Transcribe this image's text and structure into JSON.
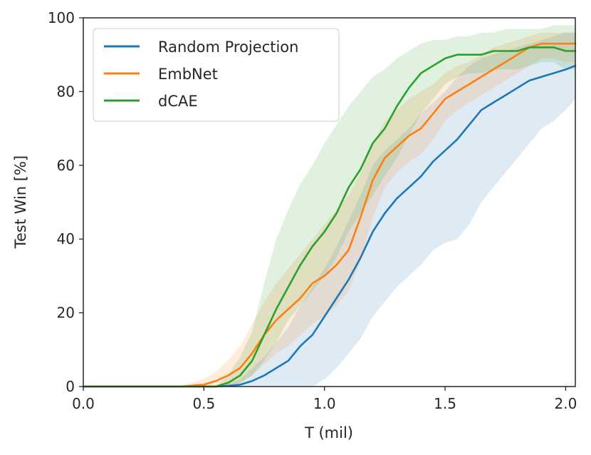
{
  "chart_data": {
    "type": "line",
    "xlabel": "T (mil)",
    "ylabel": "Test Win [%]",
    "xlim": [
      0.0,
      2.04
    ],
    "ylim": [
      0,
      100
    ],
    "xticks": [
      "0.0",
      "0.5",
      "1.0",
      "1.5",
      "2.0"
    ],
    "xtick_values": [
      0.0,
      0.5,
      1.0,
      1.5,
      2.0
    ],
    "yticks": [
      "0",
      "20",
      "40",
      "60",
      "80",
      "100"
    ],
    "ytick_values": [
      0,
      20,
      40,
      60,
      80,
      100
    ],
    "legend_position": "top-left",
    "series": [
      {
        "name": "Random Projection",
        "color": "#1f77b4",
        "x": [
          0.0,
          0.55,
          0.6,
          0.65,
          0.7,
          0.75,
          0.8,
          0.85,
          0.9,
          0.95,
          1.0,
          1.05,
          1.1,
          1.15,
          1.2,
          1.25,
          1.3,
          1.35,
          1.4,
          1.45,
          1.5,
          1.55,
          1.6,
          1.65,
          1.7,
          1.75,
          1.8,
          1.85,
          1.9,
          1.95,
          2.0,
          2.04
        ],
        "values": [
          0,
          0,
          0.2,
          0.5,
          1.5,
          3,
          5,
          7,
          11,
          14,
          19,
          24,
          29,
          35,
          42,
          47,
          51,
          54,
          57,
          61,
          64,
          67,
          71,
          75,
          77,
          79,
          81,
          83,
          84,
          85,
          86,
          87
        ],
        "lower": [
          0,
          0,
          0,
          0,
          0,
          0,
          0,
          0,
          0,
          0,
          2,
          5,
          9,
          13,
          19,
          23,
          27,
          30,
          33,
          37,
          39,
          40,
          44,
          50,
          54,
          58,
          62,
          66,
          70,
          72,
          75,
          78
        ],
        "upper": [
          0,
          0,
          1,
          2,
          5,
          8,
          12,
          16,
          22,
          27,
          32,
          38,
          45,
          52,
          60,
          64,
          67,
          70,
          74,
          77,
          80,
          84,
          87,
          89,
          90,
          91,
          92,
          93,
          94,
          95,
          96,
          96
        ]
      },
      {
        "name": "EmbNet",
        "color": "#ff7f0e",
        "x": [
          0.0,
          0.4,
          0.5,
          0.55,
          0.6,
          0.65,
          0.7,
          0.75,
          0.8,
          0.85,
          0.9,
          0.95,
          1.0,
          1.05,
          1.1,
          1.15,
          1.2,
          1.25,
          1.3,
          1.35,
          1.4,
          1.45,
          1.5,
          1.55,
          1.6,
          1.65,
          1.7,
          1.75,
          1.8,
          1.85,
          1.9,
          1.95,
          2.0,
          2.04
        ],
        "values": [
          0,
          0,
          0.5,
          1.5,
          3,
          5,
          9,
          14,
          18,
          21,
          24,
          28,
          30,
          33,
          37,
          46,
          56,
          62,
          65,
          68,
          70,
          74,
          78,
          80,
          82,
          84,
          86,
          88,
          90,
          92,
          93,
          93,
          93,
          93
        ],
        "lower": [
          0,
          0,
          0,
          0,
          0,
          1,
          3,
          6,
          9,
          11,
          14,
          17,
          19,
          22,
          26,
          34,
          46,
          54,
          58,
          61,
          63,
          67,
          72,
          75,
          77,
          79,
          81,
          83,
          85,
          87,
          89,
          89,
          88,
          88
        ],
        "upper": [
          0,
          0,
          2,
          4,
          7,
          11,
          17,
          23,
          28,
          32,
          36,
          40,
          44,
          48,
          52,
          58,
          66,
          72,
          75,
          78,
          80,
          82,
          85,
          87,
          88,
          90,
          92,
          93,
          94,
          95,
          96,
          96,
          96,
          96
        ]
      },
      {
        "name": "dCAE",
        "color": "#2ca02c",
        "x": [
          0.0,
          0.55,
          0.6,
          0.65,
          0.7,
          0.75,
          0.8,
          0.85,
          0.9,
          0.95,
          1.0,
          1.05,
          1.1,
          1.15,
          1.2,
          1.25,
          1.3,
          1.35,
          1.4,
          1.45,
          1.5,
          1.55,
          1.6,
          1.65,
          1.7,
          1.75,
          1.8,
          1.85,
          1.9,
          1.95,
          2.0,
          2.04
        ],
        "values": [
          0,
          0,
          1,
          3,
          7,
          14,
          21,
          27,
          33,
          38,
          42,
          47,
          54,
          59,
          66,
          70,
          76,
          81,
          85,
          87,
          89,
          90,
          90,
          90,
          91,
          91,
          91,
          92,
          92,
          92,
          91,
          91
        ],
        "lower": [
          0,
          0,
          0,
          1,
          3,
          7,
          12,
          18,
          22,
          26,
          30,
          35,
          42,
          47,
          52,
          57,
          62,
          68,
          74,
          78,
          82,
          84,
          85,
          85,
          86,
          86,
          86,
          87,
          88,
          88,
          86,
          86
        ],
        "upper": [
          0,
          0,
          3,
          8,
          15,
          28,
          40,
          48,
          55,
          60,
          66,
          71,
          76,
          80,
          84,
          86,
          89,
          91,
          93,
          94,
          94,
          95,
          95,
          96,
          96,
          97,
          97,
          97,
          97,
          98,
          98,
          98
        ]
      }
    ]
  }
}
